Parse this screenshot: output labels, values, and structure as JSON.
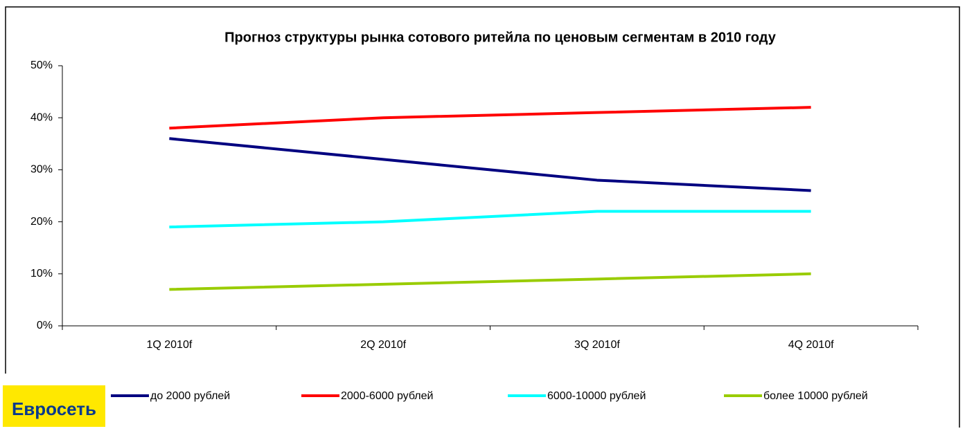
{
  "chart_data": {
    "type": "line",
    "title": "Прогноз структуры рынка сотового ритейла по ценовым сегментам в 2010 году",
    "categories": [
      "1Q 2010f",
      "2Q 2010f",
      "3Q 2010f",
      "4Q 2010f"
    ],
    "series": [
      {
        "name": "до 2000 рублей",
        "color": "#000080",
        "values": [
          36,
          32,
          28,
          26
        ]
      },
      {
        "name": "2000-6000 рублей",
        "color": "#ff0000",
        "values": [
          38,
          40,
          41,
          42
        ]
      },
      {
        "name": "6000-10000 рублей",
        "color": "#00ffff",
        "values": [
          19,
          20,
          22,
          22
        ]
      },
      {
        "name": "более 10000 рублей",
        "color": "#99cc00",
        "values": [
          7,
          8,
          9,
          10
        ]
      }
    ],
    "ylim": [
      0,
      50
    ],
    "yticks": [
      {
        "value": 0,
        "label": "0%"
      },
      {
        "value": 10,
        "label": "10%"
      },
      {
        "value": 20,
        "label": "20%"
      },
      {
        "value": 30,
        "label": "30%"
      },
      {
        "value": 40,
        "label": "40%"
      },
      {
        "value": 50,
        "label": "50%"
      }
    ],
    "grid": false,
    "legend": "bottom"
  },
  "logo": {
    "text": "Евросеть"
  }
}
